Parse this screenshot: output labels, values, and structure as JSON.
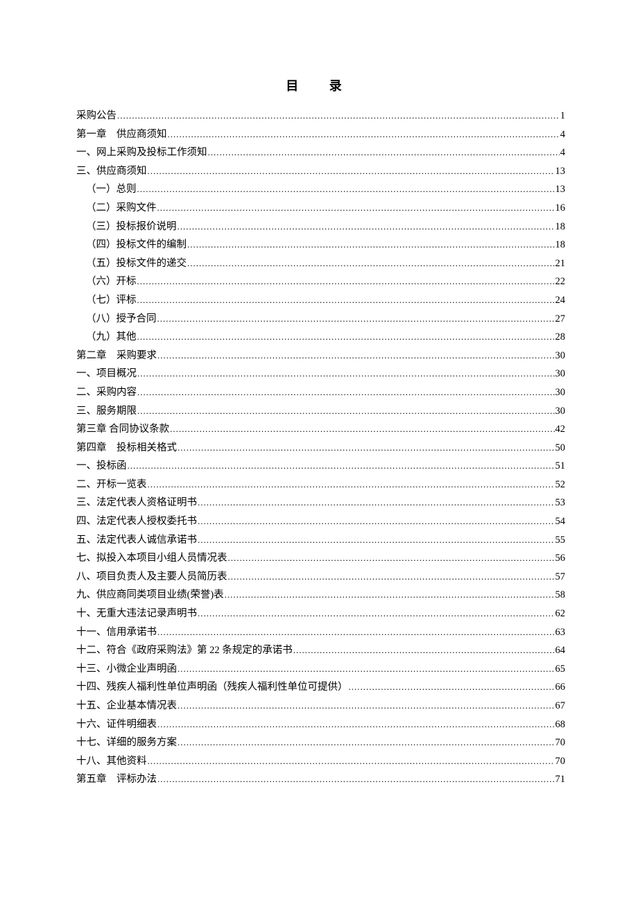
{
  "title": "目 录",
  "entries": [
    {
      "label": "采购公告",
      "page": "1",
      "indent": 0
    },
    {
      "label": "第一章　供应商须知",
      "page": "4",
      "indent": 0
    },
    {
      "label": "一、网上采购及投标工作须知",
      "page": "4",
      "indent": 0
    },
    {
      "label": "三、供应商须知",
      "page": "13",
      "indent": 0
    },
    {
      "label": "（一）总则",
      "page": "13",
      "indent": 1
    },
    {
      "label": "（二）采购文件",
      "page": "16",
      "indent": 1
    },
    {
      "label": "（三）投标报价说明",
      "page": "18",
      "indent": 1
    },
    {
      "label": "（四）投标文件的编制",
      "page": "18",
      "indent": 1
    },
    {
      "label": "（五）投标文件的递交",
      "page": "21",
      "indent": 1
    },
    {
      "label": "（六）开标",
      "page": "22",
      "indent": 1
    },
    {
      "label": "（七）评标",
      "page": "24",
      "indent": 1
    },
    {
      "label": "（八）授予合同",
      "page": "27",
      "indent": 1
    },
    {
      "label": "（九）其他",
      "page": "28",
      "indent": 1
    },
    {
      "label": "第二章　采购要求",
      "page": "30",
      "indent": 0
    },
    {
      "label": "一、项目概况",
      "page": "30",
      "indent": 0
    },
    {
      "label": "二、采购内容",
      "page": "30",
      "indent": 0
    },
    {
      "label": "三、服务期限",
      "page": "30",
      "indent": 0
    },
    {
      "label": "第三章 合同协议条款",
      "page": "42",
      "indent": 0
    },
    {
      "label": "第四章　投标相关格式",
      "page": "50",
      "indent": 0
    },
    {
      "label": "一、投标函",
      "page": "51",
      "indent": 0
    },
    {
      "label": "二、开标一览表",
      "page": "52",
      "indent": 0
    },
    {
      "label": "三、法定代表人资格证明书",
      "page": "53",
      "indent": 0
    },
    {
      "label": "四、法定代表人授权委托书",
      "page": "54",
      "indent": 0
    },
    {
      "label": "五、法定代表人诚信承诺书",
      "page": "55",
      "indent": 0
    },
    {
      "label": "七、拟投入本项目小组人员情况表",
      "page": "56",
      "indent": 0
    },
    {
      "label": "八、项目负责人及主要人员简历表",
      "page": "57",
      "indent": 0
    },
    {
      "label": "九、供应商同类项目业绩(荣誉)表",
      "page": "58",
      "indent": 0
    },
    {
      "label": "十、无重大违法记录声明书",
      "page": "62",
      "indent": 0
    },
    {
      "label": "十一、信用承诺书",
      "page": "63",
      "indent": 0
    },
    {
      "label": "十二、符合《政府采购法》第 22 条规定的承诺书",
      "page": "64",
      "indent": 0
    },
    {
      "label": "十三、小微企业声明函",
      "page": "65",
      "indent": 0
    },
    {
      "label": "十四、残疾人福利性单位声明函（残疾人福利性单位可提供）",
      "page": "66",
      "indent": 0
    },
    {
      "label": "十五、企业基本情况表",
      "page": "67",
      "indent": 0
    },
    {
      "label": "十六、证件明细表",
      "page": "68",
      "indent": 0
    },
    {
      "label": "十七、详细的服务方案",
      "page": "70",
      "indent": 0
    },
    {
      "label": "十八、其他资料",
      "page": "70",
      "indent": 0
    },
    {
      "label": "第五章　评标办法",
      "page": "71",
      "indent": 0
    }
  ]
}
